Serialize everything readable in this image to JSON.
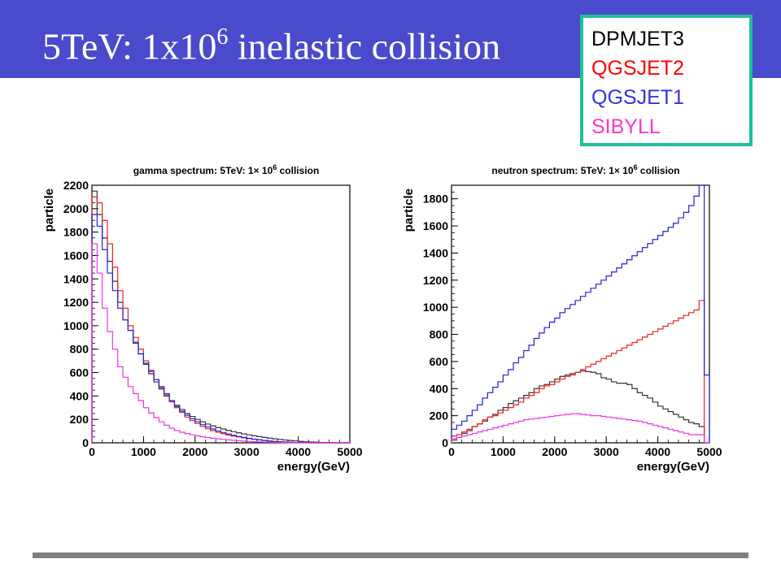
{
  "slide": {
    "title_main": "5TeV: 1x10",
    "title_sup": "6",
    "title_rest": " inelastic collision"
  },
  "legend": [
    {
      "label": "DPMJET3",
      "color": "#000000"
    },
    {
      "label": "QGSJET2",
      "color": "#ff0000"
    },
    {
      "label": "QGSJET1",
      "color": "#3333dd"
    },
    {
      "label": "SIBYLL",
      "color": "#ff33cc"
    }
  ],
  "chart_data": [
    {
      "type": "line",
      "style": "step-histogram",
      "title_prefix": "gamma spectrum: 5TeV: 1",
      "title_times": "×",
      "title_base": " 10",
      "title_exp": "6",
      "title_suffix": " collision",
      "xlabel": "energy(GeV)",
      "ylabel": "particle",
      "xlim": [
        0,
        5000
      ],
      "ylim": [
        0,
        2200
      ],
      "xticks": [
        0,
        1000,
        2000,
        3000,
        4000,
        5000
      ],
      "yticks": [
        0,
        200,
        400,
        600,
        800,
        1000,
        1200,
        1400,
        1600,
        1800,
        2000,
        2200
      ],
      "bin_width": 100,
      "series": [
        {
          "name": "DPMJET3",
          "color": "#333333",
          "values": [
            2150,
            1950,
            1750,
            1550,
            1380,
            1200,
            1050,
            960,
            860,
            760,
            670,
            590,
            520,
            460,
            400,
            360,
            320,
            285,
            250,
            225,
            200,
            180,
            160,
            145,
            130,
            118,
            106,
            95,
            85,
            76,
            68,
            60,
            53,
            46,
            40,
            34,
            29,
            24,
            20,
            16,
            12,
            9,
            7,
            5,
            3,
            2,
            1,
            0,
            0,
            0
          ]
        },
        {
          "name": "QGSJET2",
          "color": "#ee2222",
          "values": [
            2100,
            2050,
            1900,
            1700,
            1500,
            1300,
            1150,
            1000,
            900,
            800,
            700,
            620,
            540,
            470,
            410,
            350,
            300,
            260,
            220,
            190,
            165,
            140,
            120,
            104,
            90,
            78,
            67,
            58,
            50,
            42,
            36,
            30,
            25,
            20,
            16,
            12,
            9,
            7,
            5,
            3,
            2,
            1,
            1,
            0,
            0,
            0,
            0,
            0,
            0,
            0
          ]
        },
        {
          "name": "QGSJET1",
          "color": "#2222dd",
          "values": [
            1950,
            1850,
            1650,
            1450,
            1300,
            1150,
            1050,
            960,
            850,
            760,
            680,
            610,
            540,
            480,
            420,
            360,
            310,
            270,
            235,
            205,
            180,
            155,
            135,
            118,
            102,
            88,
            75,
            64,
            54,
            46,
            38,
            31,
            25,
            20,
            15,
            11,
            8,
            6,
            4,
            3,
            2,
            1,
            0,
            0,
            0,
            0,
            0,
            0,
            0,
            0
          ]
        },
        {
          "name": "SIBYLL",
          "color": "#ee33ee",
          "values": [
            1700,
            1450,
            1150,
            950,
            800,
            650,
            560,
            480,
            420,
            360,
            300,
            255,
            215,
            180,
            150,
            125,
            105,
            90,
            78,
            68,
            60,
            52,
            45,
            39,
            34,
            29,
            25,
            21,
            18,
            15,
            12,
            10,
            8,
            6,
            5,
            4,
            3,
            2,
            1,
            1,
            0,
            0,
            0,
            0,
            0,
            0,
            0,
            0,
            0,
            0
          ]
        }
      ]
    },
    {
      "type": "line",
      "style": "step-histogram",
      "title_prefix": "neutron spectrum: 5TeV: 1",
      "title_times": "×",
      "title_base": " 10",
      "title_exp": "6",
      "title_suffix": " collision",
      "xlabel": "energy(GeV)",
      "ylabel": "particle",
      "xlim": [
        0,
        5000
      ],
      "ylim": [
        0,
        1900
      ],
      "xticks": [
        0,
        1000,
        2000,
        3000,
        4000,
        5000
      ],
      "yticks": [
        0,
        200,
        400,
        600,
        800,
        1000,
        1200,
        1400,
        1600,
        1800
      ],
      "bin_width": 100,
      "series": [
        {
          "name": "DPMJET3",
          "color": "#333333",
          "values": [
            20,
            40,
            70,
            90,
            120,
            140,
            160,
            190,
            210,
            240,
            260,
            290,
            310,
            330,
            350,
            370,
            400,
            420,
            430,
            450,
            470,
            490,
            500,
            510,
            520,
            530,
            525,
            520,
            510,
            480,
            470,
            450,
            440,
            440,
            430,
            400,
            370,
            350,
            330,
            300,
            270,
            250,
            230,
            210,
            190,
            170,
            150,
            140,
            120,
            0
          ]
        },
        {
          "name": "QGSJET2",
          "color": "#ee2222",
          "values": [
            50,
            60,
            80,
            100,
            120,
            140,
            170,
            190,
            200,
            220,
            240,
            260,
            280,
            300,
            330,
            350,
            370,
            400,
            420,
            430,
            450,
            470,
            490,
            500,
            520,
            540,
            560,
            580,
            600,
            620,
            640,
            660,
            680,
            700,
            720,
            740,
            760,
            780,
            800,
            820,
            840,
            860,
            880,
            900,
            920,
            940,
            960,
            980,
            1050,
            0
          ]
        },
        {
          "name": "QGSJET1",
          "color": "#2222dd",
          "values": [
            100,
            130,
            160,
            200,
            240,
            280,
            330,
            370,
            410,
            450,
            500,
            540,
            590,
            630,
            680,
            720,
            770,
            810,
            850,
            890,
            920,
            960,
            990,
            1020,
            1050,
            1080,
            1110,
            1140,
            1170,
            1200,
            1230,
            1260,
            1290,
            1320,
            1350,
            1380,
            1410,
            1440,
            1470,
            1500,
            1530,
            1560,
            1590,
            1620,
            1660,
            1700,
            1750,
            1820,
            1900,
            500
          ]
        },
        {
          "name": "SIBYLL",
          "color": "#ee33ee",
          "values": [
            30,
            40,
            50,
            60,
            70,
            80,
            90,
            100,
            110,
            120,
            130,
            140,
            150,
            160,
            170,
            175,
            180,
            185,
            190,
            195,
            200,
            205,
            210,
            215,
            215,
            210,
            205,
            200,
            200,
            195,
            190,
            185,
            180,
            175,
            170,
            165,
            160,
            150,
            140,
            130,
            120,
            110,
            100,
            90,
            80,
            70,
            60,
            60,
            60,
            0
          ]
        }
      ]
    }
  ]
}
